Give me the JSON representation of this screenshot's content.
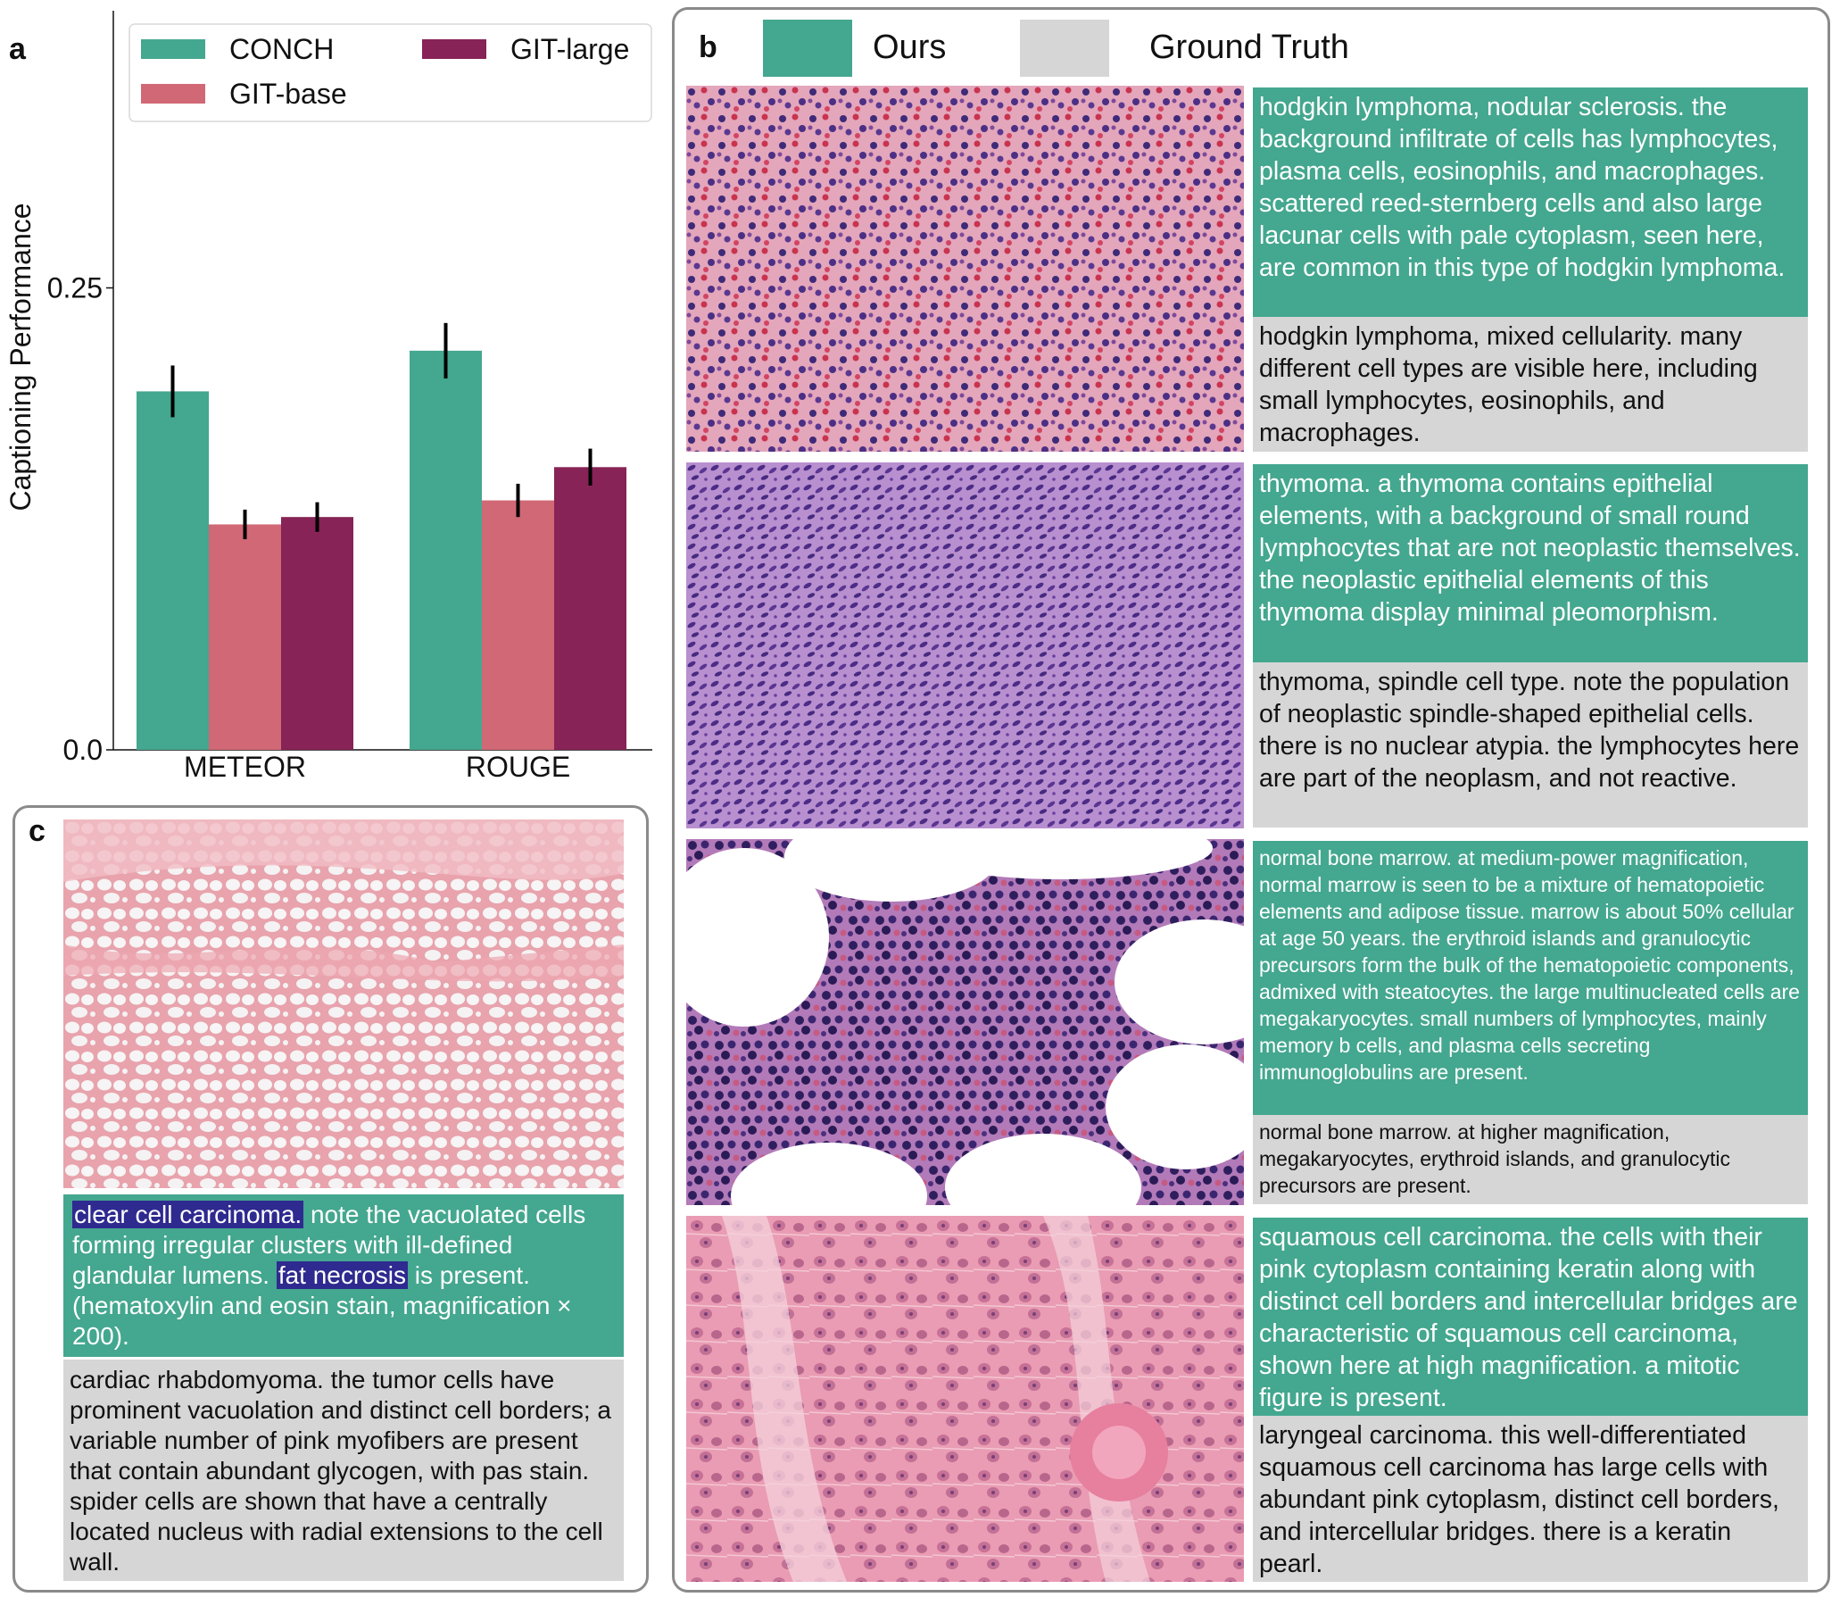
{
  "panel_labels": {
    "a": "a",
    "b": "b",
    "c": "c"
  },
  "colors": {
    "conch": "#44a78f",
    "git_base": "#d16876",
    "git_large": "#872356",
    "gt_gray": "#d6d6d6",
    "highlight": "#2e2a8f"
  },
  "chart_data": {
    "type": "bar",
    "categories": [
      "METEOR",
      "ROUGE"
    ],
    "series": [
      {
        "name": "CONCH",
        "values": [
          0.194,
          0.216
        ],
        "err": [
          0.014,
          0.015
        ],
        "color": "#44a78f"
      },
      {
        "name": "GIT-base",
        "values": [
          0.122,
          0.135
        ],
        "err": [
          0.008,
          0.009
        ],
        "color": "#d16876"
      },
      {
        "name": "GIT-large",
        "values": [
          0.126,
          0.153
        ],
        "err": [
          0.008,
          0.01
        ],
        "color": "#872356"
      }
    ],
    "ylabel": "Captioning Performance",
    "yticks": [
      0.0,
      0.25
    ],
    "ytick_labels": [
      "0.0",
      "0.25"
    ],
    "ylim": [
      0,
      0.4
    ],
    "legend_position": "top"
  },
  "panel_b": {
    "legend": {
      "ours": "Ours",
      "ground_truth": "Ground Truth"
    },
    "examples": [
      {
        "ours": "hodgkin lymphoma, nodular sclerosis. the background infiltrate of cells has lymphocytes, plasma cells, eosinophils, and macrophages. scattered reed-sternberg cells and also large lacunar cells with pale cytoplasm, seen here, are common in this type of hodgkin lymphoma.",
        "gt": "hodgkin lymphoma, mixed cellularity. many different cell types are visible here, including small lymphocytes, eosinophils, and macrophages."
      },
      {
        "ours": "thymoma. a thymoma contains epithelial elements, with a background of small round lymphocytes that are not neoplastic themselves. the neoplastic epithelial elements of this thymoma display minimal pleomorphism.",
        "gt": "thymoma, spindle cell type. note the population of neoplastic spindle-shaped epithelial cells. there is no nuclear atypia. the lymphocytes here are part of the neoplasm, and not reactive."
      },
      {
        "ours": "normal bone marrow. at medium-power magnification, normal marrow is seen to be a mixture of hematopoietic elements and adipose tissue. marrow is about 50% cellular at age 50 years. the erythroid islands and granulocytic precursors form the bulk of the hematopoietic components, admixed with steatocytes. the large multinucleated cells are megakaryocytes. small numbers of lymphocytes, mainly memory b cells, and plasma cells secreting immunoglobulins are present.",
        "gt": "normal bone marrow. at higher magnification, megakaryocytes, erythroid islands, and granulocytic precursors are present."
      },
      {
        "ours": "squamous cell carcinoma. the cells with their pink cytoplasm containing keratin along with distinct cell borders and intercellular bridges are characteristic of squamous cell carcinoma, shown here at high magnification. a mitotic figure is present.",
        "gt": "laryngeal carcinoma. this well-differentiated squamous cell carcinoma has large cells with abundant pink cytoplasm, distinct cell borders, and intercellular bridges. there is a keratin pearl."
      }
    ]
  },
  "panel_c": {
    "ours_highlight_1": "clear cell carcinoma.",
    "ours_text_1": " note the vacuolated cells forming irregular clusters with ill-defined glandular lumens. ",
    "ours_highlight_2": "fat necrosis",
    "ours_text_2": " is present. (hematoxylin and eosin stain, magnification × 200).",
    "gt": "cardiac rhabdomyoma. the tumor cells have prominent vacuolation and distinct cell borders; a variable number of pink myofibers are present that contain abundant glycogen, with pas stain. spider cells are shown that have a centrally located nucleus with radial extensions to the cell wall."
  }
}
